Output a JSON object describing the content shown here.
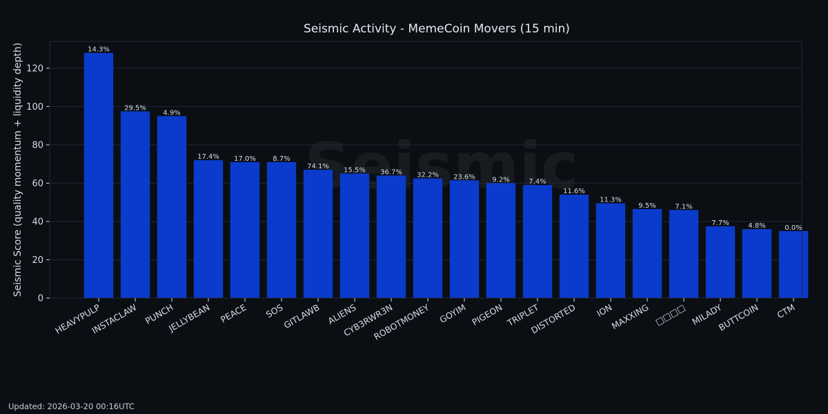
{
  "colors": {
    "background": "#0b0e13",
    "bar": "#0b3bcc",
    "grid": "#1f2a3a",
    "text": "#d8dde6"
  },
  "watermark": "Seismic",
  "footer": "Updated: 2026-03-20 00:16UTC",
  "chart_data": {
    "type": "bar",
    "title": "Seismic Activity - MemeCoin Movers (15 min)",
    "xlabel": "",
    "ylabel": "Seismic Score (quality momentum + liquidity depth)",
    "ylim": [
      0,
      134
    ],
    "yticks": [
      0,
      20,
      40,
      60,
      80,
      100,
      120
    ],
    "grid": true,
    "categories": [
      "HEAVYPULP",
      "INSTACLAW",
      "PUNCH",
      "JELLYBEAN",
      "PEACE",
      "SOS",
      "GITLAWB",
      "ALIENS",
      "CYB3RWR3N",
      "ROBOTMONEY",
      "GOYIM",
      "PIGEON",
      "TRIPLET",
      "DISTORTED",
      "ION",
      "MAXXING",
      "□□□□",
      "MILADY",
      "BUTTCOIN",
      "CTM"
    ],
    "values": [
      128,
      97.5,
      95,
      72,
      71,
      71,
      67,
      65,
      64,
      62.5,
      61.5,
      60,
      59,
      54,
      49.5,
      46.5,
      46,
      37.5,
      36,
      35
    ],
    "data_labels": [
      "14.3%",
      "29.5%",
      "4.9%",
      "17.4%",
      "17.0%",
      "8.7%",
      "74.1%",
      "15.5%",
      "36.7%",
      "32.2%",
      "23.6%",
      "9.2%",
      "7.4%",
      "11.6%",
      "11.3%",
      "9.5%",
      "7.1%",
      "7.7%",
      "4.8%",
      "0.0%"
    ]
  }
}
